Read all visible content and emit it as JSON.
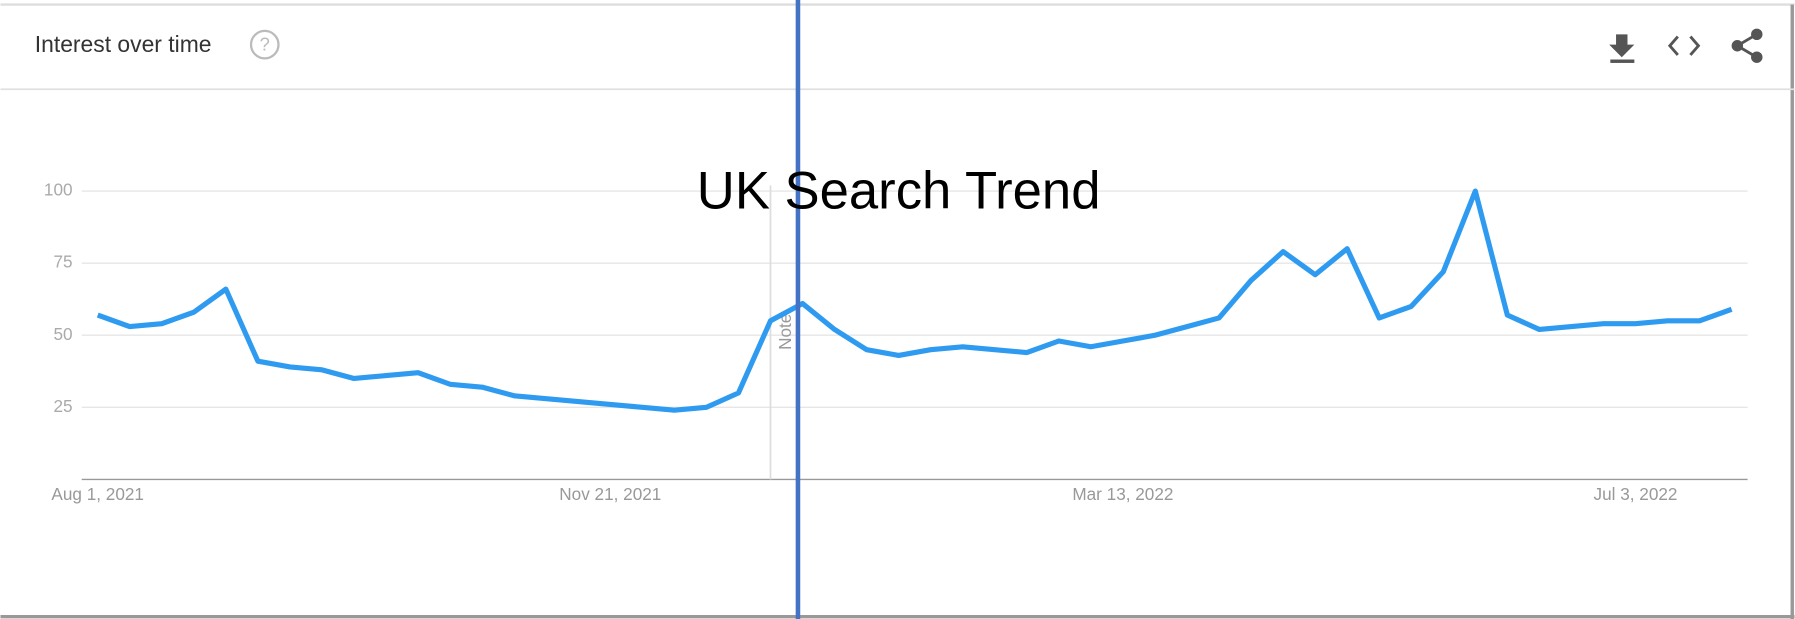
{
  "header": {
    "title": "Interest over time"
  },
  "chart_data": {
    "type": "line",
    "title": "UK Search Trend",
    "annotation": "Note",
    "categories": [
      "Aug 1, 2021",
      null,
      null,
      null,
      null,
      null,
      null,
      null,
      null,
      null,
      null,
      null,
      null,
      null,
      null,
      null,
      "Nov 21, 2021",
      null,
      null,
      null,
      null,
      null,
      null,
      null,
      null,
      null,
      null,
      null,
      null,
      null,
      null,
      null,
      "Mar 13, 2022",
      null,
      null,
      null,
      null,
      null,
      null,
      null,
      null,
      null,
      null,
      null,
      null,
      null,
      null,
      null,
      "Jul 3, 2022",
      null,
      null,
      null
    ],
    "series": [
      {
        "name": "UK",
        "color": "#2f9bf0",
        "values": [
          57,
          53,
          54,
          58,
          66,
          41,
          39,
          38,
          35,
          36,
          37,
          33,
          32,
          29,
          28,
          27,
          26,
          25,
          24,
          25,
          30,
          55,
          61,
          52,
          45,
          43,
          45,
          46,
          45,
          44,
          48,
          46,
          48,
          50,
          53,
          56,
          69,
          79,
          71,
          80,
          56,
          60,
          72,
          100,
          57,
          52,
          53,
          54,
          54,
          55,
          55,
          59
        ]
      }
    ],
    "ylim": [
      0,
      100
    ],
    "yticks": [
      25,
      50,
      75,
      100
    ],
    "grid": true
  }
}
